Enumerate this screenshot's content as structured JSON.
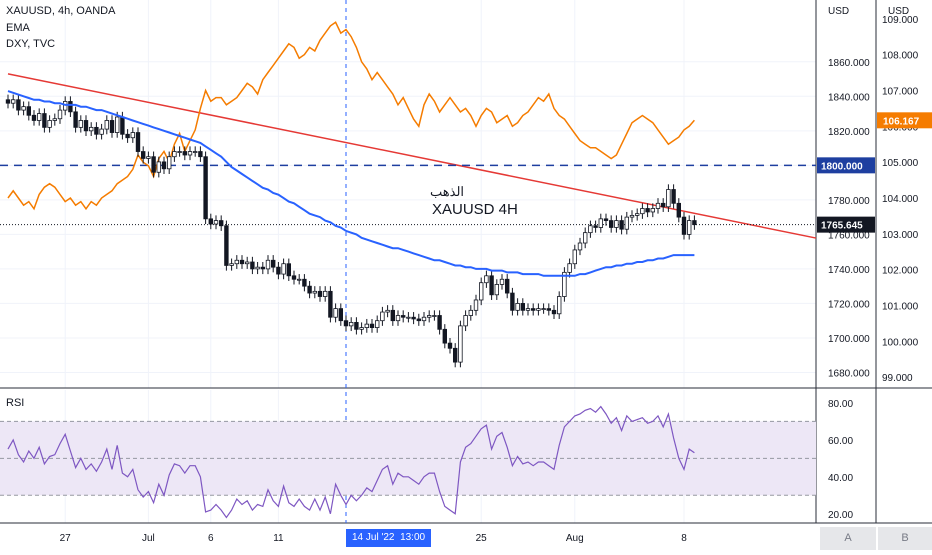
{
  "header": {
    "symbol_line": "XAUUSD, 4h, OANDA",
    "indicator_1": "EMA",
    "indicator_2": "DXY, TVC"
  },
  "annotation": {
    "arabic": "الذهب",
    "title": "XAUUSD 4H"
  },
  "rsi_panel": {
    "label": "RSI"
  },
  "axes": {
    "price_unit": "USD",
    "dxy_unit": "USD",
    "axis_a": "A",
    "axis_b": "B",
    "cursor_date": "14 Jul '22",
    "cursor_time": "13:00"
  },
  "colors": {
    "background": "#ffffff",
    "price_bars": "#131722",
    "ema": "#2962ff",
    "dxy": "#f57c00",
    "trendline": "#e53935",
    "level_line": "#1e3fa0",
    "rsi_line": "#7e57c2",
    "rsi_band": "#ede7f6",
    "axis_label_bg": "#131722",
    "cursor_label_bg": "#2962ff",
    "dxy_label_bg": "#f57c00"
  },
  "chart_data": [
    {
      "type": "candlestick",
      "title": "XAUUSD, 4h, OANDA",
      "y_axis": {
        "unit": "USD",
        "ticks": [
          1680,
          1700,
          1720,
          1740,
          1760,
          1780,
          1800,
          1820,
          1840,
          1860
        ],
        "tick_labels": [
          "1680.000",
          "1700.000",
          "1720.000",
          "1740.000",
          "1760.000",
          "1780.000",
          "1800.000",
          "1820.000",
          "1840.000",
          "1860.000"
        ],
        "ylim": [
          1671,
          1890
        ]
      },
      "x_axis": {
        "tick_labels": [
          "27",
          "Jul",
          "6",
          "11",
          "25",
          "Aug",
          "8"
        ],
        "tick_positions_bar_index": [
          11,
          27,
          39,
          52,
          91,
          109,
          130
        ],
        "cursor_bar_index": 65
      },
      "price_closes": [
        1836,
        1838,
        1832,
        1834,
        1829,
        1826,
        1830,
        1822,
        1826,
        1827,
        1832,
        1837,
        1831,
        1822,
        1826,
        1820,
        1822,
        1818,
        1821,
        1826,
        1819,
        1828,
        1818,
        1816,
        1819,
        1808,
        1804,
        1805,
        1796,
        1802,
        1798,
        1805,
        1808,
        1808,
        1806,
        1808,
        1808,
        1805,
        1769,
        1766,
        1768,
        1765,
        1742,
        1743,
        1745,
        1743,
        1744,
        1740,
        1741,
        1740,
        1745,
        1741,
        1737,
        1743,
        1736,
        1734,
        1734,
        1730,
        1726,
        1727,
        1724,
        1727,
        1712,
        1717,
        1710,
        1707,
        1709,
        1705,
        1706,
        1708,
        1706,
        1710,
        1715,
        1716,
        1710,
        1713,
        1712,
        1712,
        1711,
        1710,
        1712,
        1713,
        1713,
        1705,
        1697,
        1694,
        1686,
        1707,
        1713,
        1716,
        1722,
        1732,
        1736,
        1725,
        1731,
        1734,
        1726,
        1716,
        1720,
        1716,
        1717,
        1716,
        1717,
        1717,
        1716,
        1714,
        1724,
        1738,
        1743,
        1751,
        1755,
        1761,
        1765,
        1764,
        1769,
        1768,
        1764,
        1768,
        1763,
        1770,
        1771,
        1772,
        1775,
        1773,
        1775,
        1778,
        1776,
        1786,
        1778,
        1770,
        1760,
        1768,
        1765.645
      ],
      "last_price": {
        "value": 1765.645,
        "label": "1765.645"
      },
      "horizontal_level": {
        "value": 1800,
        "label": "1800.000"
      },
      "trendline": {
        "from": {
          "bar": 0,
          "price": 1853
        },
        "to": {
          "bar": 147,
          "price": 1763
        }
      },
      "series": [
        {
          "name": "EMA",
          "values": [
            1843,
            1842,
            1841,
            1840,
            1839,
            1838,
            1838,
            1837,
            1837,
            1836,
            1836,
            1835,
            1835,
            1835,
            1834,
            1834,
            1833,
            1832,
            1832,
            1831,
            1830,
            1829,
            1828,
            1827,
            1826,
            1825,
            1824,
            1823,
            1822,
            1821,
            1820,
            1819,
            1818,
            1817,
            1816,
            1815,
            1814,
            1813,
            1811,
            1809,
            1807,
            1805,
            1802,
            1799,
            1797,
            1795,
            1793,
            1791,
            1789,
            1787,
            1786,
            1784,
            1783,
            1781,
            1779,
            1778,
            1776,
            1774,
            1772,
            1771,
            1770,
            1768,
            1767,
            1765,
            1764,
            1762,
            1761,
            1760,
            1758,
            1757,
            1756,
            1755,
            1754,
            1753,
            1752,
            1752,
            1751,
            1750,
            1749,
            1748,
            1747,
            1746,
            1745,
            1745,
            1744,
            1743,
            1742,
            1742,
            1741,
            1741,
            1740,
            1740,
            1740,
            1739,
            1739,
            1739,
            1738,
            1738,
            1738,
            1737,
            1737,
            1737,
            1737,
            1736,
            1736,
            1736,
            1736,
            1736,
            1736,
            1736,
            1737,
            1737,
            1738,
            1739,
            1740,
            1741,
            1741,
            1742,
            1742,
            1743,
            1743,
            1744,
            1744,
            1745,
            1745,
            1746,
            1746,
            1747,
            1748,
            1748,
            1748,
            1748,
            1748
          ]
        },
        {
          "name": "DXY, TVC",
          "axis": "right_secondary",
          "axis_ticks": [
            99,
            100,
            101,
            102,
            103,
            104,
            105,
            106,
            107,
            108,
            109
          ],
          "axis_tick_labels": [
            "99.000",
            "100.000",
            "101.000",
            "102.000",
            "103.000",
            "104.000",
            "105.000",
            "106.000",
            "107.000",
            "108.000",
            "109.000"
          ],
          "last_value": {
            "value": 106.167,
            "label": "106.167"
          },
          "values": [
            104.0,
            104.2,
            104.0,
            103.8,
            103.9,
            103.7,
            104.1,
            104.3,
            104.4,
            104.3,
            104.1,
            103.9,
            104.0,
            103.8,
            103.9,
            103.7,
            103.9,
            103.8,
            104.0,
            104.1,
            104.2,
            104.4,
            104.5,
            104.6,
            104.8,
            105.2,
            105.0,
            104.9,
            104.6,
            105.1,
            105.3,
            105.0,
            105.5,
            105.8,
            105.3,
            105.6,
            105.9,
            106.5,
            107.0,
            106.7,
            106.8,
            106.8,
            106.6,
            106.7,
            106.8,
            107.0,
            107.2,
            107.1,
            106.9,
            107.3,
            107.5,
            107.7,
            107.9,
            108.1,
            108.3,
            108.2,
            107.9,
            108.0,
            108.2,
            108.1,
            108.4,
            108.6,
            108.8,
            108.9,
            108.6,
            108.7,
            108.5,
            108.2,
            107.8,
            107.6,
            107.3,
            107.5,
            107.3,
            107.1,
            106.9,
            106.6,
            106.8,
            106.5,
            106.2,
            106.0,
            106.6,
            106.9,
            106.7,
            106.4,
            106.6,
            106.8,
            106.6,
            106.4,
            106.5,
            106.3,
            106.0,
            106.3,
            106.5,
            106.4,
            106.1,
            106.2,
            106.3,
            106.0,
            106.1,
            106.3,
            106.4,
            106.6,
            106.8,
            106.7,
            106.9,
            106.5,
            106.3,
            106.2,
            106.0,
            105.8,
            105.6,
            105.5,
            105.4,
            105.4,
            105.3,
            105.2,
            105.1,
            105.2,
            105.5,
            105.8,
            106.1,
            106.2,
            106.3,
            106.2,
            106.1,
            105.9,
            105.7,
            105.5,
            105.6,
            105.7,
            105.9,
            106.0,
            106.167
          ]
        }
      ]
    },
    {
      "type": "line",
      "title": "RSI",
      "y_axis": {
        "ticks": [
          20,
          40,
          60,
          80
        ],
        "tick_labels": [
          "20.00",
          "40.00",
          "60.00",
          "80.00"
        ],
        "ylim": [
          15,
          87
        ],
        "band": [
          30,
          70
        ]
      },
      "series": [
        {
          "name": "RSI",
          "values": [
            55,
            60,
            52,
            48,
            54,
            50,
            56,
            47,
            51,
            52,
            58,
            63,
            54,
            45,
            50,
            44,
            47,
            43,
            48,
            55,
            44,
            57,
            42,
            40,
            44,
            33,
            29,
            32,
            26,
            36,
            30,
            41,
            47,
            46,
            42,
            46,
            46,
            40,
            21,
            22,
            25,
            22,
            18,
            22,
            28,
            25,
            27,
            22,
            25,
            24,
            33,
            27,
            24,
            35,
            26,
            24,
            28,
            24,
            22,
            28,
            22,
            29,
            20,
            36,
            30,
            25,
            30,
            27,
            30,
            34,
            32,
            38,
            44,
            46,
            36,
            42,
            40,
            40,
            38,
            36,
            40,
            42,
            42,
            32,
            24,
            22,
            20,
            48,
            56,
            58,
            62,
            66,
            68,
            55,
            62,
            64,
            56,
            46,
            51,
            47,
            48,
            46,
            48,
            48,
            46,
            44,
            57,
            67,
            70,
            73,
            74,
            76,
            77,
            75,
            78,
            74,
            69,
            72,
            65,
            73,
            70,
            71,
            72,
            69,
            70,
            73,
            67,
            74,
            61,
            50,
            44,
            55,
            53
          ]
        }
      ]
    }
  ]
}
